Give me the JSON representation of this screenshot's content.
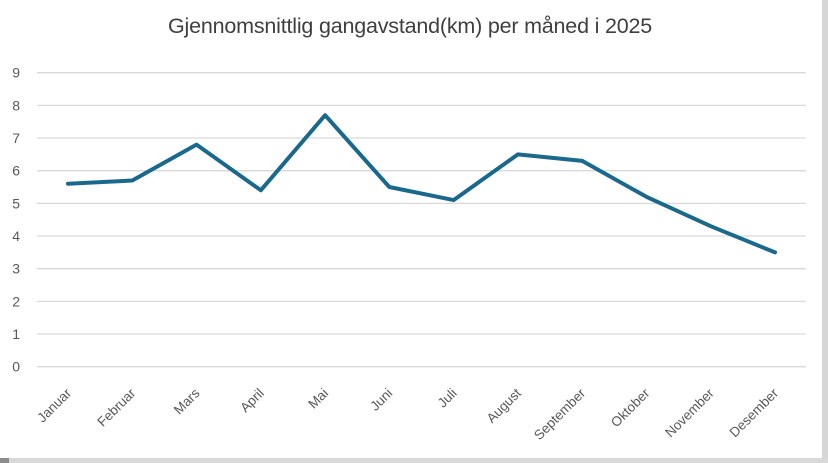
{
  "window": {
    "right_strip_color": "#D6D6D6",
    "bottom_strip_color": "#D9D9D9",
    "corner_color": "#8C8C8C"
  },
  "chart_data": {
    "type": "line",
    "title": "Gjennomsnittlig gangavstand(km) per måned i 2025",
    "categories": [
      "Januar",
      "Februar",
      "Mars",
      "April",
      "Mai",
      "Juni",
      "Juli",
      "August",
      "September",
      "Oktober",
      "November",
      "Desember"
    ],
    "values": [
      5.6,
      5.7,
      6.8,
      5.4,
      7.7,
      5.5,
      5.1,
      6.5,
      6.3,
      5.2,
      4.3,
      3.5
    ],
    "xlabel": "",
    "ylabel": "",
    "ylim": [
      0,
      9
    ],
    "ytick_step": 1,
    "yticks": [
      "0",
      "1",
      "2",
      "3",
      "4",
      "5",
      "6",
      "7",
      "8",
      "9"
    ],
    "grid": true,
    "legend_position": "none",
    "line_color": "#1A698D",
    "grid_color": "#D9D9D9",
    "title_color": "#3F3F3F",
    "axis_label_color": "#595959",
    "background_color": "#FFFFFF"
  }
}
